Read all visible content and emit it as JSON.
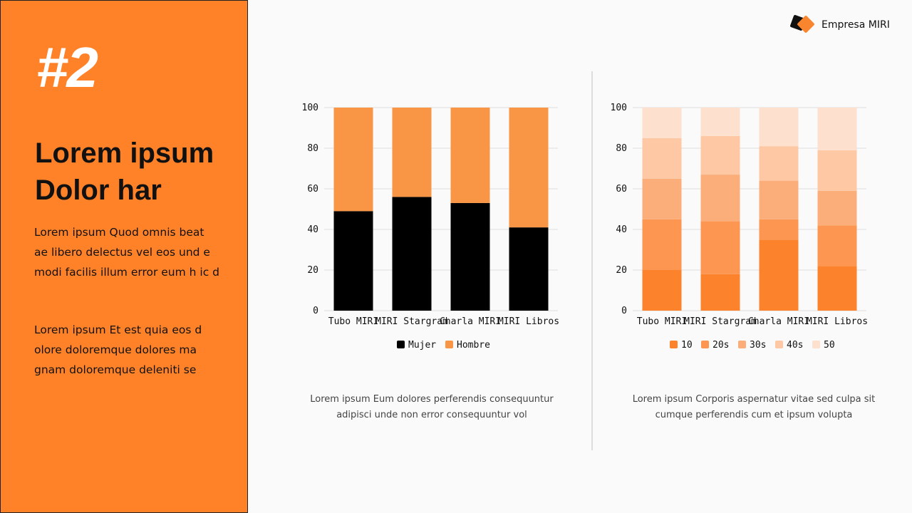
{
  "left": {
    "number": "#2",
    "title_line1": "Lorem ipsum",
    "title_line2": "Dolor har",
    "para1": "Lorem ipsum Quod omnis beat ae libero delectus vel eos und e modi facilis illum error eum h ic d",
    "para2": "Lorem ipsum Et est quia eos d olore doloremque dolores ma gnam doloremque deleniti se"
  },
  "brand": {
    "name": "Empresa MIRI"
  },
  "captions": [
    "Lorem ipsum Eum dolores perferendis consequuntur adipisci unde non error consequuntur vol",
    "Lorem ipsum Corporis aspernatur vitae sed culpa sit cumque perferendis cum et ipsum volupta"
  ],
  "chart_data": [
    {
      "type": "bar",
      "stacked": true,
      "categories": [
        "Tubo MIRI",
        "MIRI Stargram",
        "Charla MIRI",
        "MIRI Libros"
      ],
      "ylim": [
        0,
        100
      ],
      "yticks": [
        0,
        20,
        40,
        60,
        80,
        100
      ],
      "grid": true,
      "legend": "bottom",
      "series": [
        {
          "name": "Mujer",
          "color": "#000000",
          "values": [
            49,
            56,
            53,
            41
          ]
        },
        {
          "name": "Hombre",
          "color": "#F99645",
          "values": [
            51,
            44,
            47,
            59
          ]
        }
      ]
    },
    {
      "type": "bar",
      "stacked": true,
      "categories": [
        "Tubo MIRI",
        "MIRI Stargram",
        "Charla MIRI",
        "MIRI Libros"
      ],
      "ylim": [
        0,
        100
      ],
      "yticks": [
        0,
        20,
        40,
        60,
        80,
        100
      ],
      "grid": true,
      "legend": "bottom",
      "series": [
        {
          "name": "10",
          "color": "#FC832C",
          "values": [
            20,
            18,
            35,
            22
          ]
        },
        {
          "name": "20s",
          "color": "#FC9650",
          "values": [
            25,
            26,
            10,
            20
          ]
        },
        {
          "name": "30s",
          "color": "#FCAE7A",
          "values": [
            20,
            23,
            19,
            17
          ]
        },
        {
          "name": "40s",
          "color": "#FDC8A3",
          "values": [
            20,
            19,
            17,
            20
          ]
        },
        {
          "name": "50",
          "color": "#FDE0CD",
          "values": [
            15,
            14,
            19,
            21
          ]
        }
      ]
    }
  ]
}
